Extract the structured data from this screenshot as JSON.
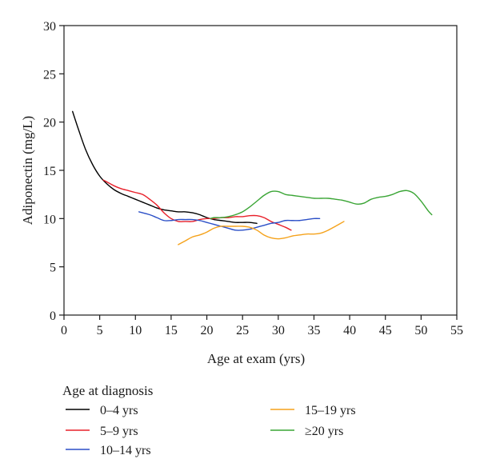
{
  "chart_data": {
    "type": "line",
    "title": "",
    "xlabel": "Age at exam (yrs)",
    "ylabel": "Adiponectin (mg/L)",
    "xlim": [
      0,
      55
    ],
    "ylim": [
      0,
      30
    ],
    "xticks": [
      0,
      5,
      10,
      15,
      20,
      25,
      30,
      35,
      40,
      45,
      50,
      55
    ],
    "yticks": [
      0,
      5,
      10,
      15,
      20,
      25,
      30
    ],
    "grid": false,
    "legend": {
      "title": "Age at diagnosis",
      "placement": "below"
    },
    "series": [
      {
        "name": "0–4 yrs",
        "color": "#000000",
        "x": [
          1.2,
          2,
          3,
          4,
          5,
          6,
          7,
          8,
          9,
          10,
          11,
          12,
          13,
          14,
          15,
          16,
          17,
          18,
          19,
          20,
          21,
          22,
          23,
          24,
          25,
          26,
          27
        ],
        "y": [
          21.1,
          19.3,
          17.2,
          15.6,
          14.4,
          13.6,
          13.0,
          12.6,
          12.3,
          12.0,
          11.7,
          11.4,
          11.1,
          10.9,
          10.8,
          10.7,
          10.7,
          10.6,
          10.4,
          10.1,
          9.9,
          9.8,
          9.7,
          9.6,
          9.6,
          9.6,
          9.5
        ]
      },
      {
        "name": "5–9 yrs",
        "color": "#e8202a",
        "x": [
          5.5,
          7,
          8,
          9,
          10,
          11,
          12,
          13,
          14,
          15,
          16,
          17,
          18,
          19,
          20,
          21,
          22,
          23,
          24,
          25,
          26,
          27,
          28,
          29,
          30,
          31,
          31.8
        ],
        "y": [
          14.0,
          13.4,
          13.1,
          12.9,
          12.7,
          12.5,
          12.0,
          11.4,
          10.6,
          10.0,
          9.7,
          9.7,
          9.7,
          9.9,
          10.0,
          10.0,
          10.1,
          10.1,
          10.2,
          10.2,
          10.3,
          10.3,
          10.1,
          9.7,
          9.4,
          9.1,
          8.8
        ]
      },
      {
        "name": "10–14 yrs",
        "color": "#2b4fc7",
        "x": [
          10.5,
          12,
          13,
          14,
          15,
          16,
          17,
          18,
          19,
          20,
          21,
          22,
          23,
          24,
          25,
          26,
          27,
          28,
          29,
          30,
          31,
          32,
          33,
          34,
          35,
          35.8
        ],
        "y": [
          10.7,
          10.4,
          10.1,
          9.8,
          9.8,
          9.9,
          9.9,
          9.9,
          9.8,
          9.6,
          9.4,
          9.2,
          9.0,
          8.8,
          8.8,
          8.9,
          9.1,
          9.3,
          9.5,
          9.6,
          9.8,
          9.8,
          9.8,
          9.9,
          10.0,
          10.0
        ]
      },
      {
        "name": "15–19 yrs",
        "color": "#f5a21b",
        "x": [
          16,
          17,
          18,
          19,
          20,
          21,
          22,
          23,
          24,
          25,
          26,
          27,
          28,
          29,
          30,
          31,
          32,
          33,
          34,
          35,
          36,
          37,
          38,
          39.2
        ],
        "y": [
          7.3,
          7.7,
          8.1,
          8.3,
          8.6,
          9.0,
          9.2,
          9.2,
          9.2,
          9.2,
          9.1,
          8.8,
          8.3,
          8.0,
          7.9,
          8.0,
          8.2,
          8.3,
          8.4,
          8.4,
          8.5,
          8.8,
          9.2,
          9.7
        ]
      },
      {
        "name": "≥20 yrs",
        "color": "#3aa535",
        "x": [
          20.5,
          21,
          22,
          23,
          24,
          25,
          26,
          27,
          28,
          29,
          30,
          31,
          32,
          33,
          34,
          35,
          36,
          37,
          38,
          39,
          40,
          41,
          42,
          43,
          44,
          45,
          46,
          47,
          48,
          49,
          50,
          51,
          51.5
        ],
        "y": [
          10.0,
          10.1,
          10.1,
          10.2,
          10.4,
          10.7,
          11.2,
          11.8,
          12.4,
          12.8,
          12.8,
          12.5,
          12.4,
          12.3,
          12.2,
          12.1,
          12.1,
          12.1,
          12.0,
          11.9,
          11.7,
          11.5,
          11.6,
          12.0,
          12.2,
          12.3,
          12.5,
          12.8,
          12.9,
          12.6,
          11.8,
          10.8,
          10.4
        ]
      }
    ]
  }
}
